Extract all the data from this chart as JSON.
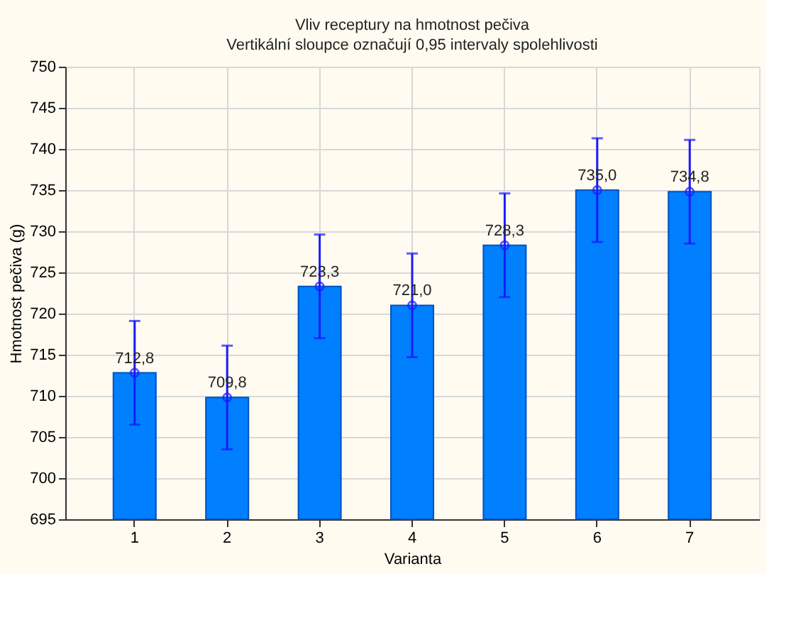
{
  "chart_data": {
    "type": "bar",
    "title": "Vliv receptury na hmotnost pečiva",
    "subtitle": "Vertikální sloupce označují 0,95 intervaly spolehlivosti",
    "xlabel": "Varianta",
    "ylabel": "Hmotnost pečiva (g)",
    "categories": [
      "1",
      "2",
      "3",
      "4",
      "5",
      "6",
      "7"
    ],
    "series": [
      {
        "color": "#0080ff",
        "values": [
          712.8,
          709.8,
          723.3,
          721.0,
          728.3,
          735.0,
          734.8
        ],
        "value_labels": [
          "712,8",
          "709,8",
          "723,3",
          "721,0",
          "728,3",
          "735,0",
          "734,8"
        ],
        "errors": [
          6.3,
          6.3,
          6.3,
          6.3,
          6.3,
          6.3,
          6.3
        ]
      },
      {
        "type": "scatter",
        "color": "#1a1aff",
        "x": [
          "1",
          "2",
          "3",
          "4",
          "5",
          "6",
          "7"
        ],
        "values": [
          712.8,
          709.8,
          723.3,
          721.0,
          728.3,
          735.0,
          734.8
        ],
        "marker": "circle"
      }
    ],
    "ylim": [
      695,
      750
    ],
    "yticks": [
      695,
      700,
      705,
      710,
      715,
      720,
      725,
      730,
      735,
      740,
      745,
      750
    ],
    "grid": true
  }
}
